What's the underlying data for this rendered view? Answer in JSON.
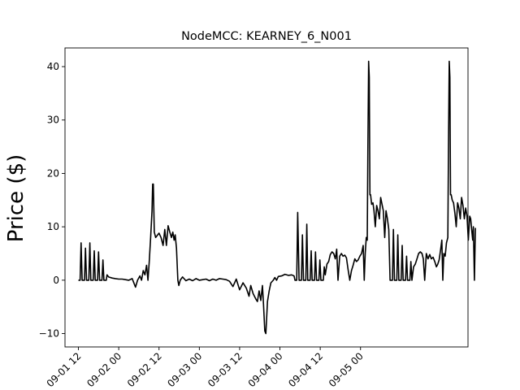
{
  "chart_data": {
    "type": "line",
    "title": "NodeMCC: KEARNEY_6_N001",
    "xlabel": "",
    "ylabel": "Price ($)",
    "x_unit": "hours since 2024-09-01 00",
    "xlim": [
      8,
      128
    ],
    "ylim": [
      -12.5,
      43.5
    ],
    "yticks": [
      -10,
      0,
      10,
      20,
      30,
      40
    ],
    "ytick_labels": [
      "−10",
      "0",
      "10",
      "20",
      "30",
      "40"
    ],
    "xticks": [
      12,
      24,
      36,
      48,
      60,
      72,
      84,
      96
    ],
    "xtick_labels": [
      "09-01 12",
      "09-02 00",
      "09-02 12",
      "09-03 00",
      "09-03 12",
      "09-04 00",
      "09-04 12",
      "09-05 00"
    ],
    "grid": false,
    "legend": "none",
    "line_color": "#000000",
    "series": [
      {
        "name": "",
        "points": [
          [
            12,
            0
          ],
          [
            12.5,
            0
          ],
          [
            12.8,
            7
          ],
          [
            13.1,
            0
          ],
          [
            13.8,
            0
          ],
          [
            14.1,
            6
          ],
          [
            14.4,
            0
          ],
          [
            15.1,
            0
          ],
          [
            15.4,
            7
          ],
          [
            15.7,
            0
          ],
          [
            16.4,
            0
          ],
          [
            16.7,
            5.5
          ],
          [
            17.0,
            0
          ],
          [
            17.7,
            0
          ],
          [
            18.0,
            5.3
          ],
          [
            18.3,
            0
          ],
          [
            19.0,
            0
          ],
          [
            19.3,
            3.8
          ],
          [
            19.6,
            0
          ],
          [
            20.3,
            0
          ],
          [
            20.5,
            1.0
          ],
          [
            21,
            0.6
          ],
          [
            22,
            0.4
          ],
          [
            23,
            0.3
          ],
          [
            24,
            0.2
          ],
          [
            25,
            0.2
          ],
          [
            26,
            0.1
          ],
          [
            27,
            0
          ],
          [
            28,
            0.3
          ],
          [
            29,
            -1.3
          ],
          [
            29.6,
            0
          ],
          [
            30.3,
            0.8
          ],
          [
            30.8,
            0
          ],
          [
            31.3,
            1.8
          ],
          [
            31.8,
            1
          ],
          [
            32.3,
            2.8
          ],
          [
            32.7,
            0
          ],
          [
            33.1,
            3.5
          ],
          [
            33.5,
            8
          ],
          [
            33.9,
            13
          ],
          [
            34.1,
            18
          ],
          [
            34.3,
            18
          ],
          [
            34.6,
            9
          ],
          [
            35,
            8
          ],
          [
            35.6,
            8.5
          ],
          [
            36,
            8.8
          ],
          [
            36.6,
            8
          ],
          [
            37.2,
            6.5
          ],
          [
            37.7,
            9.5
          ],
          [
            38.2,
            6.5
          ],
          [
            38.7,
            10.2
          ],
          [
            39.2,
            9
          ],
          [
            39.7,
            8
          ],
          [
            40.1,
            9
          ],
          [
            40.5,
            7.5
          ],
          [
            40.8,
            8.5
          ],
          [
            41.2,
            6
          ],
          [
            41.6,
            0
          ],
          [
            41.9,
            -1
          ],
          [
            42.3,
            0
          ],
          [
            43,
            0.6
          ],
          [
            44,
            -0.1
          ],
          [
            45,
            0.2
          ],
          [
            46,
            -0.1
          ],
          [
            47,
            0.3
          ],
          [
            48,
            0
          ],
          [
            49,
            0.1
          ],
          [
            50,
            0.2
          ],
          [
            51,
            -0.1
          ],
          [
            52,
            0.2
          ],
          [
            53,
            0
          ],
          [
            54,
            0.3
          ],
          [
            55,
            0.2
          ],
          [
            56,
            0.1
          ],
          [
            57,
            -0.2
          ],
          [
            58,
            -1.2
          ],
          [
            59,
            0.2
          ],
          [
            60,
            -1.8
          ],
          [
            61,
            -0.5
          ],
          [
            62,
            -1.5
          ],
          [
            62.8,
            -3
          ],
          [
            63.3,
            -1
          ],
          [
            64,
            -2.5
          ],
          [
            64.8,
            -3.5
          ],
          [
            65.3,
            -4
          ],
          [
            65.8,
            -2
          ],
          [
            66.3,
            -3.8
          ],
          [
            66.8,
            -1
          ],
          [
            67.1,
            -4.5
          ],
          [
            67.5,
            -9.5
          ],
          [
            67.8,
            -10
          ],
          [
            68.3,
            -4
          ],
          [
            68.8,
            -2
          ],
          [
            69.3,
            -0.5
          ],
          [
            70,
            0
          ],
          [
            70.5,
            0.5
          ],
          [
            71,
            0
          ],
          [
            71.5,
            0.7
          ],
          [
            72.5,
            0.8
          ],
          [
            73.5,
            1.1
          ],
          [
            74.5,
            0.9
          ],
          [
            75.5,
            1.0
          ],
          [
            76.2,
            0.8
          ],
          [
            76.5,
            0
          ],
          [
            77,
            0
          ],
          [
            77.3,
            12.7
          ],
          [
            77.7,
            0
          ],
          [
            78.4,
            0
          ],
          [
            78.7,
            8.5
          ],
          [
            79.0,
            0
          ],
          [
            79.7,
            0
          ],
          [
            80.0,
            10.5
          ],
          [
            80.3,
            0
          ],
          [
            81.0,
            0
          ],
          [
            81.3,
            5.5
          ],
          [
            81.6,
            0
          ],
          [
            82.3,
            0
          ],
          [
            82.6,
            5.3
          ],
          [
            82.9,
            0
          ],
          [
            83.6,
            0
          ],
          [
            83.9,
            3.8
          ],
          [
            84.2,
            0
          ],
          [
            84.9,
            0
          ],
          [
            85.2,
            2.5
          ],
          [
            85.5,
            1
          ],
          [
            86,
            3
          ],
          [
            86.5,
            3.5
          ],
          [
            87,
            4.8
          ],
          [
            87.5,
            5.3
          ],
          [
            88,
            5
          ],
          [
            88.5,
            4
          ],
          [
            88.9,
            5.8
          ],
          [
            89.3,
            0
          ],
          [
            89.8,
            4.5
          ],
          [
            90.3,
            5
          ],
          [
            90.8,
            4.5
          ],
          [
            91.3,
            4.7
          ],
          [
            91.8,
            4.2
          ],
          [
            92.3,
            2
          ],
          [
            92.8,
            0
          ],
          [
            93.3,
            1.8
          ],
          [
            93.8,
            2.8
          ],
          [
            94.3,
            4
          ],
          [
            94.8,
            3.5
          ],
          [
            95.3,
            3.8
          ],
          [
            95.8,
            4.5
          ],
          [
            96.3,
            5
          ],
          [
            96.8,
            6.5
          ],
          [
            97.1,
            0
          ],
          [
            97.4,
            5
          ],
          [
            97.7,
            8
          ],
          [
            98.0,
            7.5
          ],
          [
            98.2,
            25
          ],
          [
            98.4,
            41
          ],
          [
            98.6,
            38
          ],
          [
            98.8,
            16
          ],
          [
            99.0,
            16
          ],
          [
            99.3,
            14.2
          ],
          [
            99.7,
            14.5
          ],
          [
            100,
            13
          ],
          [
            100.4,
            10
          ],
          [
            100.8,
            14
          ],
          [
            101.2,
            13
          ],
          [
            101.6,
            11.5
          ],
          [
            102,
            15.5
          ],
          [
            102.4,
            14.2
          ],
          [
            102.8,
            13
          ],
          [
            103.2,
            8
          ],
          [
            103.6,
            13
          ],
          [
            104.0,
            11.5
          ],
          [
            104.4,
            9.5
          ],
          [
            104.8,
            0
          ],
          [
            105.5,
            0
          ],
          [
            105.8,
            9.5
          ],
          [
            106.1,
            0
          ],
          [
            106.8,
            0
          ],
          [
            107.1,
            8.5
          ],
          [
            107.4,
            0
          ],
          [
            108.1,
            0
          ],
          [
            108.4,
            6.5
          ],
          [
            108.7,
            0
          ],
          [
            109.4,
            0
          ],
          [
            109.7,
            4.5
          ],
          [
            110,
            0
          ],
          [
            110.7,
            0
          ],
          [
            111,
            3.5
          ],
          [
            111.3,
            0
          ],
          [
            111.8,
            2.5
          ],
          [
            112.3,
            3
          ],
          [
            112.8,
            4
          ],
          [
            113.3,
            5
          ],
          [
            113.8,
            5.3
          ],
          [
            114.3,
            5
          ],
          [
            114.7,
            4
          ],
          [
            115.1,
            0
          ],
          [
            115.6,
            5
          ],
          [
            116.1,
            4
          ],
          [
            116.6,
            4.8
          ],
          [
            117.1,
            4
          ],
          [
            117.6,
            4.3
          ],
          [
            118.1,
            3.5
          ],
          [
            118.6,
            2.5
          ],
          [
            119,
            3
          ],
          [
            119.4,
            3.8
          ],
          [
            119.8,
            5.5
          ],
          [
            120.2,
            7.5
          ],
          [
            120.5,
            0
          ],
          [
            120.8,
            5
          ],
          [
            121.2,
            4.5
          ],
          [
            121.6,
            7
          ],
          [
            122,
            8
          ],
          [
            122.2,
            25
          ],
          [
            122.4,
            41
          ],
          [
            122.6,
            38
          ],
          [
            122.8,
            16
          ],
          [
            123,
            16
          ],
          [
            123.3,
            15
          ],
          [
            123.7,
            14.5
          ],
          [
            124.1,
            12.5
          ],
          [
            124.5,
            10
          ],
          [
            124.9,
            14.5
          ],
          [
            125.3,
            13.5
          ],
          [
            125.7,
            11.5
          ],
          [
            126.1,
            15.5
          ],
          [
            126.5,
            14
          ],
          [
            126.9,
            11.5
          ],
          [
            127.3,
            13.5
          ],
          [
            127.7,
            12
          ],
          [
            128.1,
            7.5
          ],
          [
            128.5,
            12
          ],
          [
            128.8,
            11.5
          ],
          [
            129.1,
            9.5
          ],
          [
            129.4,
            7.5
          ],
          [
            129.6,
            10
          ],
          [
            129.9,
            0
          ],
          [
            130.2,
            9.8
          ]
        ]
      }
    ]
  }
}
